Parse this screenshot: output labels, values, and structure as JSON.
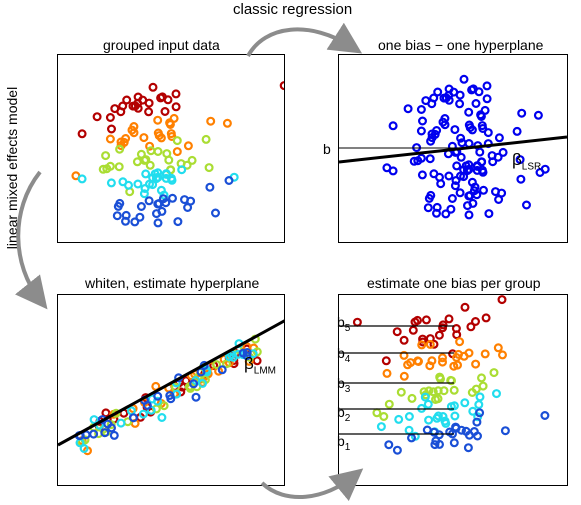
{
  "titles": {
    "top": "classic regression",
    "side": "linear mixed effects model",
    "p1": "grouped input data",
    "p2": "one bias − one hyperplane",
    "p3": "whiten, estimate hyperplane",
    "p4": "estimate one bias per group"
  },
  "labels": {
    "b": "b",
    "beta": "β",
    "lsr_sub": "LSR",
    "lmm_sub": "LMM",
    "b_sub": [
      "5",
      "4",
      "3",
      "2",
      "1"
    ]
  },
  "colors": {
    "groups": [
      "#b30000",
      "#ff8000",
      "#aadd33",
      "#22ddee",
      "#1a4fd6"
    ],
    "blue": "#0000ee",
    "line": "#000000"
  }
}
